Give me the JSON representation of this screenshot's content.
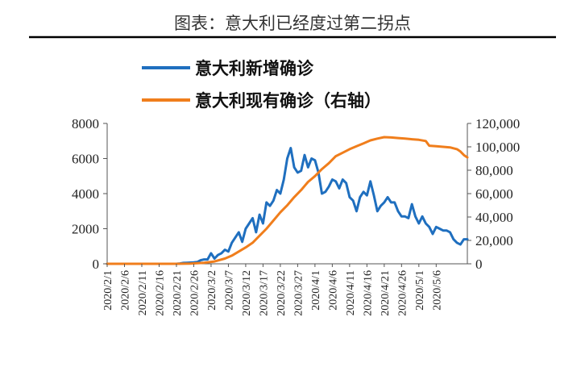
{
  "chart_data": {
    "type": "line",
    "title": "图表：意大利已经度过第二拐点",
    "legend": {
      "placement": "top-left"
    },
    "y_left": {
      "min": 0,
      "max": 8000,
      "ticks": [
        "0",
        "2000",
        "4000",
        "6000",
        "8000"
      ]
    },
    "y_right": {
      "min": 0,
      "max": 120000,
      "ticks": [
        "0",
        "20,000",
        "40,000",
        "60,000",
        "80,000",
        "100,000",
        "120,000"
      ]
    },
    "x_ticks": [
      "2020/2/1",
      "2020/2/6",
      "2020/2/11",
      "2020/2/16",
      "2020/2/21",
      "2020/2/26",
      "2020/3/2",
      "2020/3/7",
      "2020/3/12",
      "2020/3/17",
      "2020/3/22",
      "2020/3/27",
      "2020/4/1",
      "2020/4/6",
      "2020/4/11",
      "2020/4/16",
      "2020/4/21",
      "2020/4/26",
      "2020/5/1",
      "2020/5/6"
    ],
    "x_start": "2020/2/1",
    "series": [
      {
        "name": "意大利新增确诊",
        "axis": "left",
        "color": "#1f6fbf",
        "points": [
          [
            0,
            0
          ],
          [
            20,
            0
          ],
          [
            21,
            20
          ],
          [
            22,
            50
          ],
          [
            23,
            60
          ],
          [
            24,
            70
          ],
          [
            25,
            80
          ],
          [
            26,
            100
          ],
          [
            27,
            200
          ],
          [
            28,
            250
          ],
          [
            29,
            250
          ],
          [
            30,
            600
          ],
          [
            31,
            300
          ],
          [
            32,
            500
          ],
          [
            33,
            600
          ],
          [
            34,
            800
          ],
          [
            35,
            700
          ],
          [
            36,
            1200
          ],
          [
            37,
            1500
          ],
          [
            38,
            1800
          ],
          [
            39,
            1250
          ],
          [
            40,
            2000
          ],
          [
            41,
            2300
          ],
          [
            42,
            2600
          ],
          [
            43,
            1800
          ],
          [
            44,
            2800
          ],
          [
            45,
            2300
          ],
          [
            46,
            3500
          ],
          [
            47,
            3300
          ],
          [
            48,
            3600
          ],
          [
            49,
            4200
          ],
          [
            50,
            4000
          ],
          [
            51,
            4800
          ],
          [
            52,
            6000
          ],
          [
            53,
            6600
          ],
          [
            54,
            5500
          ],
          [
            55,
            5200
          ],
          [
            56,
            5300
          ],
          [
            57,
            6200
          ],
          [
            58,
            5500
          ],
          [
            59,
            6000
          ],
          [
            60,
            5900
          ],
          [
            61,
            5200
          ],
          [
            62,
            4000
          ],
          [
            63,
            4100
          ],
          [
            64,
            4400
          ],
          [
            65,
            4800
          ],
          [
            66,
            4700
          ],
          [
            67,
            4300
          ],
          [
            68,
            4800
          ],
          [
            69,
            4600
          ],
          [
            70,
            3800
          ],
          [
            71,
            3600
          ],
          [
            72,
            3000
          ],
          [
            73,
            3800
          ],
          [
            74,
            4100
          ],
          [
            75,
            3900
          ],
          [
            76,
            4700
          ],
          [
            77,
            3900
          ],
          [
            78,
            3000
          ],
          [
            79,
            3300
          ],
          [
            80,
            3500
          ],
          [
            81,
            3800
          ],
          [
            82,
            3500
          ],
          [
            83,
            3500
          ],
          [
            84,
            3000
          ],
          [
            85,
            2700
          ],
          [
            86,
            2700
          ],
          [
            87,
            2600
          ],
          [
            88,
            3400
          ],
          [
            89,
            2700
          ],
          [
            90,
            2300
          ],
          [
            91,
            2700
          ],
          [
            92,
            2300
          ],
          [
            93,
            2100
          ],
          [
            94,
            1700
          ],
          [
            95,
            2100
          ],
          [
            96,
            2000
          ],
          [
            97,
            1900
          ],
          [
            98,
            1900
          ],
          [
            99,
            1800
          ],
          [
            100,
            1400
          ],
          [
            101,
            1200
          ],
          [
            102,
            1100
          ],
          [
            103,
            1400
          ],
          [
            104,
            1400
          ]
        ]
      },
      {
        "name": "意大利现有确诊（右轴）",
        "axis": "right",
        "color": "#f07e1c",
        "points": [
          [
            0,
            0
          ],
          [
            20,
            0
          ],
          [
            24,
            150
          ],
          [
            28,
            900
          ],
          [
            31,
            2000
          ],
          [
            34,
            4500
          ],
          [
            36,
            7000
          ],
          [
            38,
            10500
          ],
          [
            40,
            14000
          ],
          [
            42,
            18000
          ],
          [
            44,
            24000
          ],
          [
            46,
            30000
          ],
          [
            48,
            37000
          ],
          [
            50,
            44000
          ],
          [
            52,
            50000
          ],
          [
            54,
            57000
          ],
          [
            56,
            63000
          ],
          [
            58,
            70000
          ],
          [
            60,
            75000
          ],
          [
            62,
            81000
          ],
          [
            64,
            86000
          ],
          [
            66,
            92000
          ],
          [
            68,
            95000
          ],
          [
            70,
            98000
          ],
          [
            72,
            100500
          ],
          [
            74,
            103000
          ],
          [
            76,
            105500
          ],
          [
            78,
            107000
          ],
          [
            80,
            108300
          ],
          [
            82,
            108000
          ],
          [
            84,
            107500
          ],
          [
            86,
            107000
          ],
          [
            88,
            106500
          ],
          [
            90,
            106000
          ],
          [
            92,
            105000
          ],
          [
            93,
            101000
          ],
          [
            95,
            100500
          ],
          [
            97,
            100000
          ],
          [
            99,
            99500
          ],
          [
            101,
            98000
          ],
          [
            102,
            96000
          ],
          [
            103,
            93000
          ],
          [
            104,
            91000
          ]
        ]
      }
    ]
  }
}
